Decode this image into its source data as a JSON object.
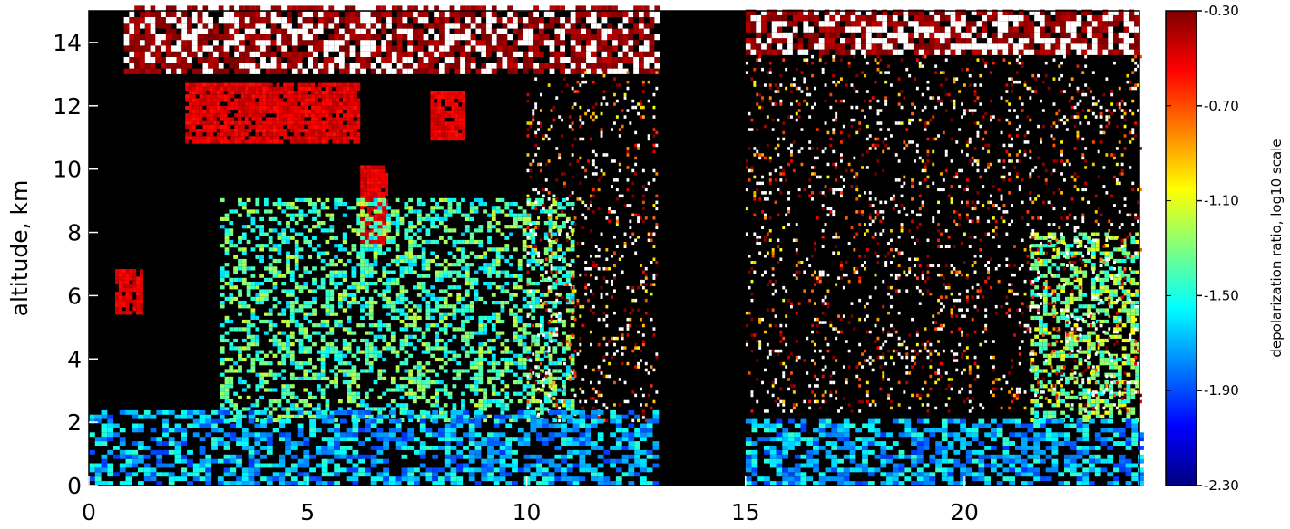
{
  "chart_data": {
    "type": "heatmap",
    "title": "",
    "xlabel": "",
    "ylabel": "altitude, km",
    "xlim": [
      0,
      24
    ],
    "ylim": [
      0,
      15
    ],
    "x_ticks": [
      0,
      5,
      10,
      15,
      20
    ],
    "y_ticks": [
      0,
      2,
      4,
      6,
      8,
      10,
      12,
      14
    ],
    "colorbar": {
      "label": "depolarization ratio, log10 scale",
      "range": [
        -2.3,
        -0.3
      ],
      "ticks": [
        "-0.30",
        "-0.70",
        "-1.10",
        "-1.50",
        "-1.90",
        "-2.30"
      ],
      "colors": [
        "#00007f",
        "#0000ff",
        "#007fff",
        "#00ffff",
        "#7fff7f",
        "#ffff00",
        "#ff7f00",
        "#ff0000",
        "#7f0000"
      ]
    },
    "no_data_gaps": [
      [
        13.2,
        15.0
      ]
    ],
    "features": [
      {
        "kind": "cirrus",
        "x": [
          0.8,
          13.0
        ],
        "y": [
          13.0,
          15.0
        ],
        "value": -0.35
      },
      {
        "kind": "cirrus",
        "x": [
          15.0,
          24.0
        ],
        "y": [
          13.6,
          15.0
        ],
        "value": -0.35
      },
      {
        "kind": "cloud",
        "x": [
          2.2,
          6.2
        ],
        "y": [
          10.8,
          12.6
        ],
        "value": -0.5
      },
      {
        "kind": "cloud",
        "x": [
          7.8,
          8.6
        ],
        "y": [
          10.9,
          12.4
        ],
        "value": -0.5
      },
      {
        "kind": "cloud",
        "x": [
          6.2,
          6.8
        ],
        "y": [
          7.6,
          10.0
        ],
        "value": -0.5
      },
      {
        "kind": "cloud",
        "x": [
          0.6,
          1.2
        ],
        "y": [
          5.4,
          6.8
        ],
        "value": -0.5
      },
      {
        "kind": "aerosol",
        "x": [
          3.0,
          11.0
        ],
        "y": [
          2.0,
          9.0
        ],
        "value": -1.4
      },
      {
        "kind": "aerosol",
        "x": [
          21.5,
          24.0
        ],
        "y": [
          2.0,
          8.0
        ],
        "value": -1.3
      },
      {
        "kind": "noise",
        "x": [
          10.0,
          13.0
        ],
        "y": [
          2.0,
          13.0
        ],
        "value": -0.6
      },
      {
        "kind": "noise",
        "x": [
          15.0,
          24.0
        ],
        "y": [
          2.3,
          13.5
        ],
        "value": -0.6
      },
      {
        "kind": "boundary_layer",
        "x": [
          0.0,
          13.0
        ],
        "y": [
          0.0,
          2.3
        ],
        "value": -1.7
      },
      {
        "kind": "boundary_layer",
        "x": [
          15.0,
          24.0
        ],
        "y": [
          0.0,
          2.0
        ],
        "value": -1.7
      }
    ]
  }
}
